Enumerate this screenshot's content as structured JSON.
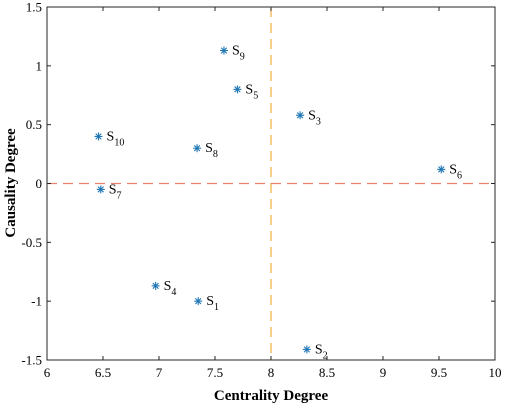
{
  "chart_data": {
    "type": "scatter",
    "xlabel": "Centrality Degree",
    "ylabel": "Causality Degree",
    "xlim": [
      6,
      10
    ],
    "ylim": [
      -1.5,
      1.5
    ],
    "x_ticks": [
      "6",
      "6.5",
      "7",
      "7.5",
      "8",
      "8.5",
      "9",
      "9.5",
      "10"
    ],
    "y_ticks": [
      "-1.5",
      "-1",
      "-0.5",
      "0",
      "0.5",
      "1",
      "1.5"
    ],
    "grid": false,
    "marker": "*",
    "marker_color": "#1f77b4",
    "reference_lines": [
      {
        "axis": "x",
        "value": 8,
        "style": "dashed",
        "color": "#f0b34a"
      },
      {
        "axis": "y",
        "value": 0,
        "style": "dashed",
        "color": "#e8826b"
      }
    ],
    "points": [
      {
        "base": "S",
        "sub": "1",
        "x": 7.35,
        "y": -1.0
      },
      {
        "base": "S",
        "sub": "2",
        "x": 8.32,
        "y": -1.41
      },
      {
        "base": "S",
        "sub": "3",
        "x": 8.26,
        "y": 0.58
      },
      {
        "base": "S",
        "sub": "4",
        "x": 6.97,
        "y": -0.87
      },
      {
        "base": "S",
        "sub": "5",
        "x": 7.7,
        "y": 0.8
      },
      {
        "base": "S",
        "sub": "6",
        "x": 9.52,
        "y": 0.12
      },
      {
        "base": "S",
        "sub": "7",
        "x": 6.48,
        "y": -0.05
      },
      {
        "base": "S",
        "sub": "8",
        "x": 7.34,
        "y": 0.3
      },
      {
        "base": "S",
        "sub": "9",
        "x": 7.58,
        "y": 1.13
      },
      {
        "base": "S",
        "sub": "10",
        "x": 6.46,
        "y": 0.4
      }
    ]
  }
}
